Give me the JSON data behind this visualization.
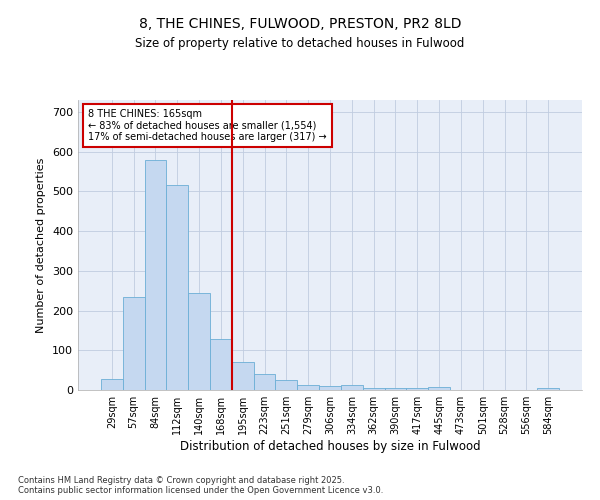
{
  "title1": "8, THE CHINES, FULWOOD, PRESTON, PR2 8LD",
  "title2": "Size of property relative to detached houses in Fulwood",
  "xlabel": "Distribution of detached houses by size in Fulwood",
  "ylabel": "Number of detached properties",
  "categories": [
    "29sqm",
    "57sqm",
    "84sqm",
    "112sqm",
    "140sqm",
    "168sqm",
    "195sqm",
    "223sqm",
    "251sqm",
    "279sqm",
    "306sqm",
    "334sqm",
    "362sqm",
    "390sqm",
    "417sqm",
    "445sqm",
    "473sqm",
    "501sqm",
    "528sqm",
    "556sqm",
    "584sqm"
  ],
  "values": [
    28,
    233,
    578,
    515,
    243,
    128,
    70,
    40,
    25,
    13,
    10,
    13,
    4,
    4,
    4,
    8,
    0,
    0,
    0,
    0,
    5
  ],
  "bar_color": "#c5d8f0",
  "bar_edge_color": "#6baed6",
  "bg_color": "#e8eef8",
  "fig_bg_color": "#ffffff",
  "vline_x": 5.0,
  "vline_color": "#cc0000",
  "annotation_text": "8 THE CHINES: 165sqm\n← 83% of detached houses are smaller (1,554)\n17% of semi-detached houses are larger (317) →",
  "annotation_box_color": "#ffffff",
  "annotation_box_edge": "#cc0000",
  "footer": "Contains HM Land Registry data © Crown copyright and database right 2025.\nContains public sector information licensed under the Open Government Licence v3.0.",
  "ylim": [
    0,
    730
  ],
  "yticks": [
    0,
    100,
    200,
    300,
    400,
    500,
    600,
    700
  ]
}
